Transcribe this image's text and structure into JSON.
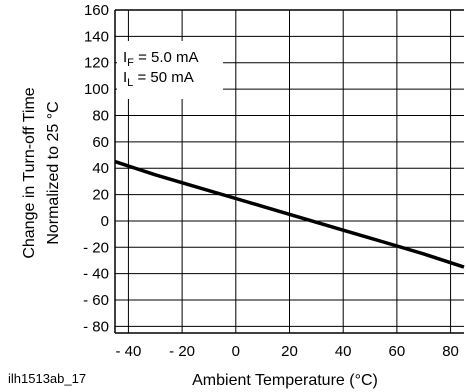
{
  "chart_data": {
    "type": "line",
    "title": "",
    "xlabel": "Ambient Temperature (°C)",
    "ylabel_line1": "Change in Turn-off Time",
    "ylabel_line2": "Normalized to 25 °C",
    "xlim": [
      -45,
      85
    ],
    "ylim": [
      -85,
      160
    ],
    "x_ticks": [
      -40,
      -20,
      0,
      20,
      40,
      60,
      80
    ],
    "x_tick_labels": [
      "- 40",
      "- 20",
      "0",
      "20",
      "40",
      "60",
      "80"
    ],
    "y_ticks": [
      160,
      140,
      120,
      100,
      80,
      60,
      40,
      20,
      0,
      -20,
      -40,
      -60,
      -80
    ],
    "y_tick_labels": [
      "160",
      "140",
      "120",
      "100",
      "80",
      "60",
      "40",
      "20",
      "0",
      "- 20",
      "- 40",
      "- 60",
      "- 80"
    ],
    "grid": true,
    "annotation": {
      "line1_main": "I",
      "line1_sub": "F",
      "line1_rest": " = 5.0 mA",
      "line2_main": "I",
      "line2_sub": "L",
      "line2_rest": " = 50 mA"
    },
    "series": [
      {
        "x": [
          -45,
          -30,
          -15,
          0,
          10,
          25,
          40,
          55,
          70,
          85
        ],
        "y": [
          45,
          35,
          26,
          17,
          11,
          2,
          -7,
          -16,
          -25,
          -35
        ]
      }
    ]
  },
  "figure_id": "ilh1513ab_17",
  "colors": {
    "line": "#000000",
    "grid": "#000000"
  }
}
